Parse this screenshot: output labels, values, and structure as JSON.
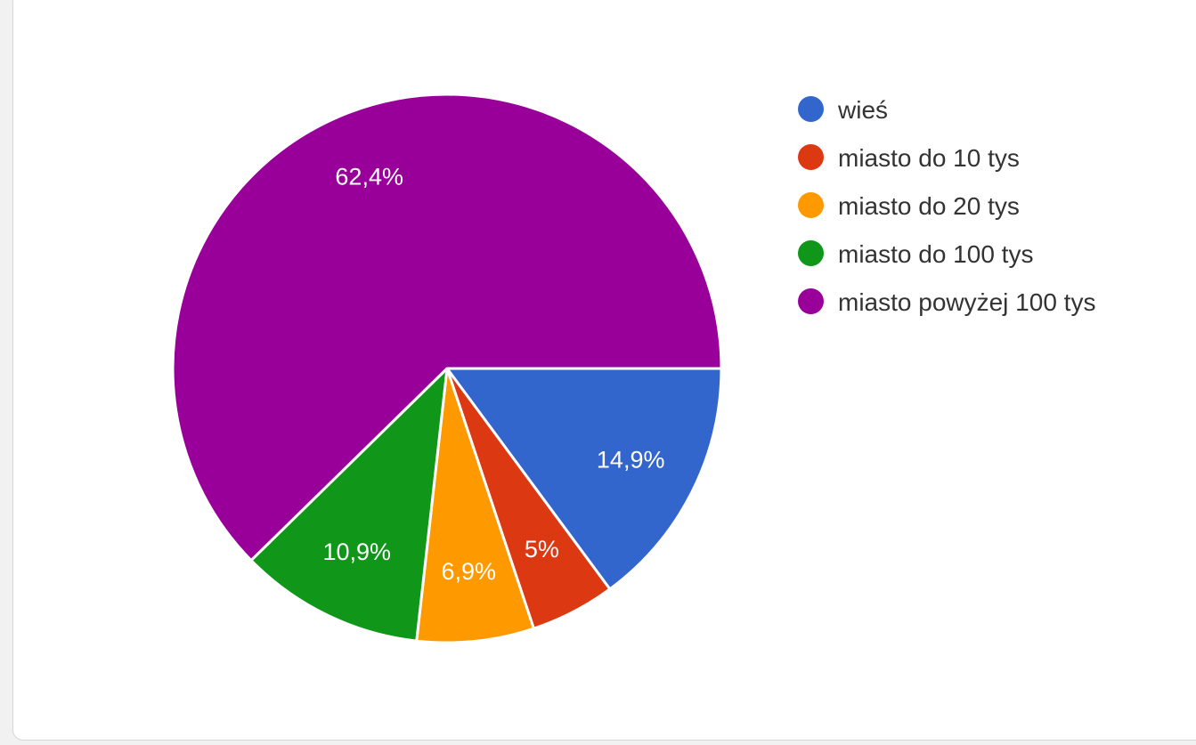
{
  "chart_data": {
    "type": "pie",
    "labels": [
      "wieś",
      "miasto do 10 tys",
      "miasto do 20 tys",
      "miasto do 100 tys",
      "miasto powyżej 100 tys"
    ],
    "values": [
      14.9,
      5.0,
      6.9,
      10.9,
      62.4
    ],
    "value_labels": [
      "14,9%",
      "5%",
      "6,9%",
      "10,9%",
      "62,4%"
    ],
    "colors": [
      "#3366cc",
      "#dc3912",
      "#ff9900",
      "#109618",
      "#990099"
    ],
    "legend_position": "right",
    "start_angle": "east, clockwise"
  }
}
